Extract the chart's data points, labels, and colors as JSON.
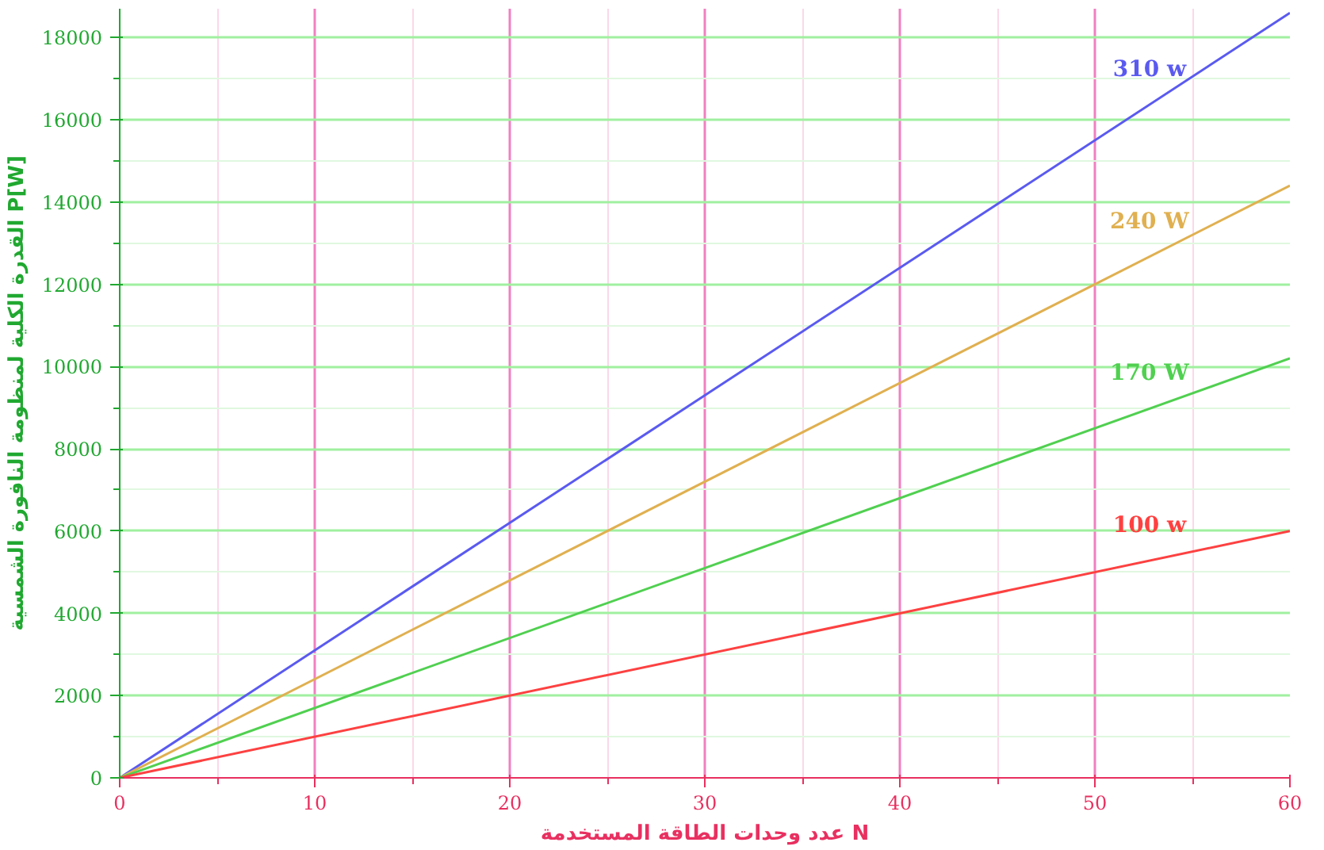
{
  "chart_data": {
    "type": "line",
    "xlabel": "عدد وحدات الطاقة المستخدمة N",
    "ylabel": "القدرة الكلية لمنظومة النافورة الشمسية P[W]",
    "x": [
      0,
      60
    ],
    "series": [
      {
        "name": "310 w",
        "color": "#5a5af0",
        "values": [
          0,
          18600
        ]
      },
      {
        "name": "240 W",
        "color": "#e0b050",
        "values": [
          0,
          14400
        ]
      },
      {
        "name": "170 W",
        "color": "#50d050",
        "values": [
          0,
          10200
        ]
      },
      {
        "name": "100 w",
        "color": "#ff4040",
        "values": [
          0,
          6000
        ]
      }
    ],
    "xlim": [
      0,
      60
    ],
    "ylim": [
      0,
      18700
    ],
    "xticks": [
      0,
      10,
      20,
      30,
      40,
      50,
      60
    ],
    "yticks": [
      0,
      2000,
      4000,
      6000,
      8000,
      10000,
      12000,
      14000,
      16000,
      18000
    ],
    "grid": true,
    "marker": "none",
    "line_style": "solid"
  }
}
